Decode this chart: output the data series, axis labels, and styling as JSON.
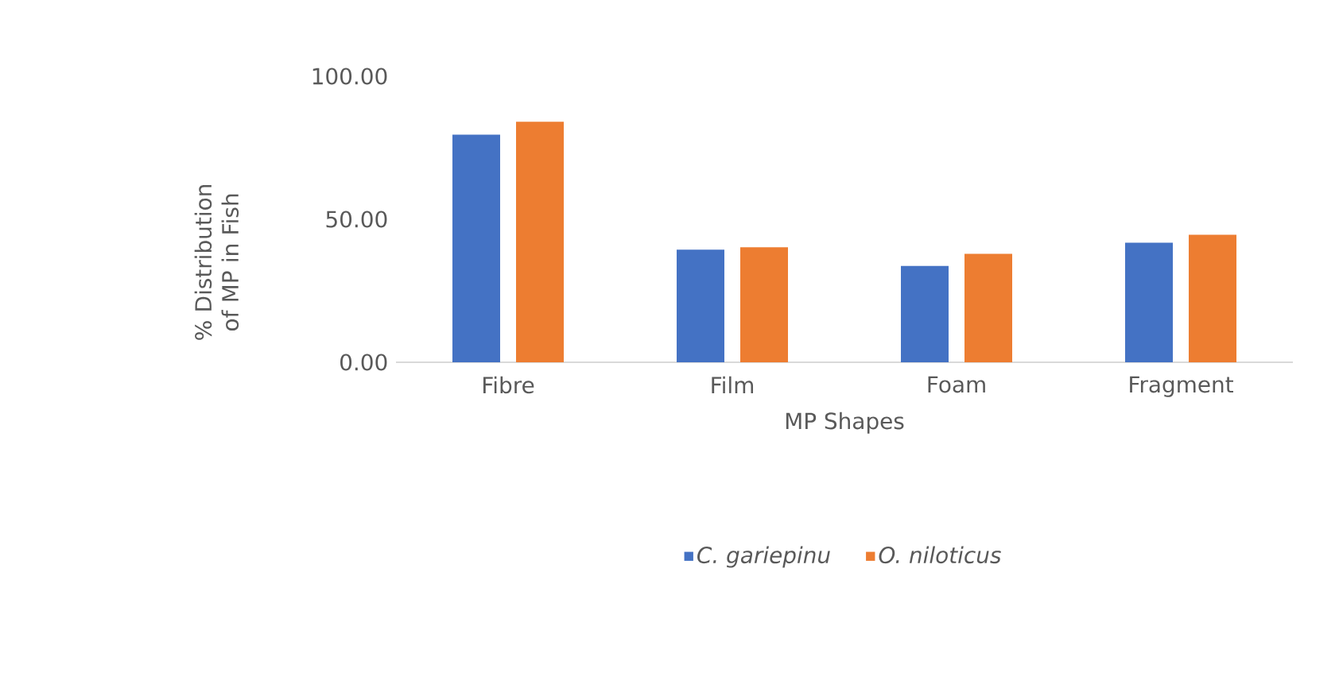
{
  "chart_data": {
    "type": "bar",
    "xlabel": "MP Shapes",
    "ylabel": "% Distribution of MP in Fish",
    "categories": [
      "Fibre",
      "Film",
      "Foam",
      "Fragment"
    ],
    "series": [
      {
        "name": "C. gariepinu",
        "color": "#4472c4",
        "values": [
          79.6,
          39.4,
          33.7,
          41.8
        ]
      },
      {
        "name": "O. niloticus",
        "color": "#ed7d31",
        "values": [
          84.1,
          40.2,
          37.9,
          44.6
        ]
      }
    ],
    "ylim": [
      0,
      100
    ],
    "yticks": [
      {
        "value": 0,
        "label": "0.00"
      },
      {
        "value": 50,
        "label": "50.00"
      },
      {
        "value": 100,
        "label": "100.00"
      }
    ],
    "legend": "bottom"
  }
}
